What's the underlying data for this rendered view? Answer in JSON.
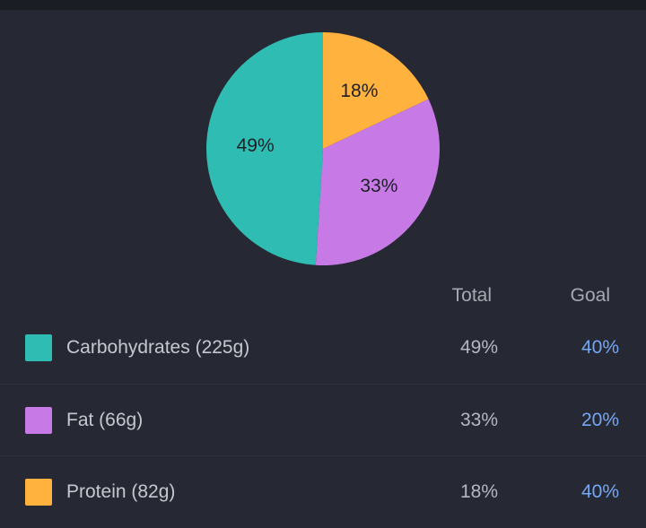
{
  "chart_data": {
    "type": "pie",
    "slices": [
      {
        "name": "Protein",
        "value": 18,
        "label": "18%",
        "color": "#ffb23e"
      },
      {
        "name": "Fat",
        "value": 33,
        "label": "33%",
        "color": "#c77ae6"
      },
      {
        "name": "Carbohydrates",
        "value": 49,
        "label": "49%",
        "color": "#2fbdb3"
      }
    ]
  },
  "table": {
    "headers": {
      "total": "Total",
      "goal": "Goal"
    },
    "rows": [
      {
        "name": "Carbohydrates (225g)",
        "total": "49%",
        "goal": "40%",
        "color": "#2fbdb3"
      },
      {
        "name": "Fat (66g)",
        "total": "33%",
        "goal": "20%",
        "color": "#c77ae6"
      },
      {
        "name": "Protein (82g)",
        "total": "18%",
        "goal": "40%",
        "color": "#ffb23e"
      }
    ]
  },
  "colors": {
    "background": "#262833",
    "goal_text": "#74a7f4"
  }
}
